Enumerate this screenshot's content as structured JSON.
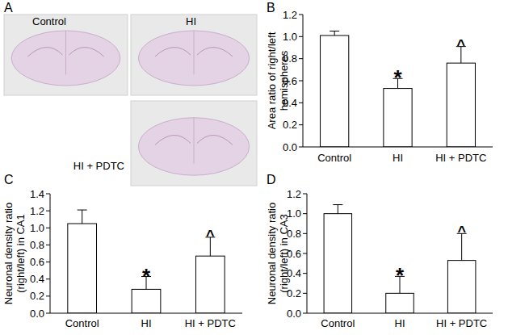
{
  "images": {
    "label": "A",
    "items": [
      {
        "caption": "Control"
      },
      {
        "caption": "HI"
      },
      {
        "caption": "HI + PDTC"
      }
    ]
  },
  "chart_data": [
    {
      "type": "bar",
      "label": "B",
      "ylabel": [
        "Area ratio of right/left",
        "hemispheres"
      ],
      "categories": [
        "Control",
        "HI",
        "HI + PDTC"
      ],
      "values": [
        1.01,
        0.53,
        0.76
      ],
      "errors": [
        0.04,
        0.09,
        0.15
      ],
      "annotations": [
        null,
        "*",
        "^"
      ],
      "color": "#ffffff",
      "grid": false,
      "ylim": [
        0,
        1.2
      ],
      "yticks": [
        {
          "value": 0,
          "label": "0.0"
        },
        0.2,
        0.4,
        0.6,
        0.8,
        {
          "value": 1,
          "label": "1.0"
        },
        1.2
      ]
    },
    {
      "type": "bar",
      "label": "C",
      "ylabel": [
        "Neuronal density ratio",
        "(right/left) in CA1"
      ],
      "categories": [
        "Control",
        "HI",
        "HI + PDTC"
      ],
      "values": [
        1.05,
        0.28,
        0.67
      ],
      "errors": [
        0.16,
        0.15,
        0.22
      ],
      "annotations": [
        null,
        "*",
        "^"
      ],
      "color": "#ffffff",
      "grid": false,
      "ylim": [
        0,
        1.4
      ],
      "yticks": [
        {
          "value": 0,
          "label": "0.0"
        },
        0.2,
        0.4,
        0.6,
        0.8,
        {
          "value": 1,
          "label": "1.0"
        },
        1.2,
        1.4
      ]
    },
    {
      "type": "bar",
      "label": "D",
      "ylabel": [
        "Neuronal density ratio",
        "(right/left) in CA3"
      ],
      "categories": [
        "Control",
        "HI",
        "HI + PDTC"
      ],
      "values": [
        1.0,
        0.2,
        0.53
      ],
      "errors": [
        0.09,
        0.17,
        0.27
      ],
      "annotations": [
        null,
        "*",
        "^"
      ],
      "color": "#ffffff",
      "grid": false,
      "ylim": [
        0,
        1.2
      ],
      "yticks": [
        {
          "value": 0,
          "label": "0.0"
        },
        0.2,
        0.4,
        0.6,
        0.8,
        {
          "value": 1,
          "label": "1.0"
        },
        1.2
      ]
    }
  ]
}
